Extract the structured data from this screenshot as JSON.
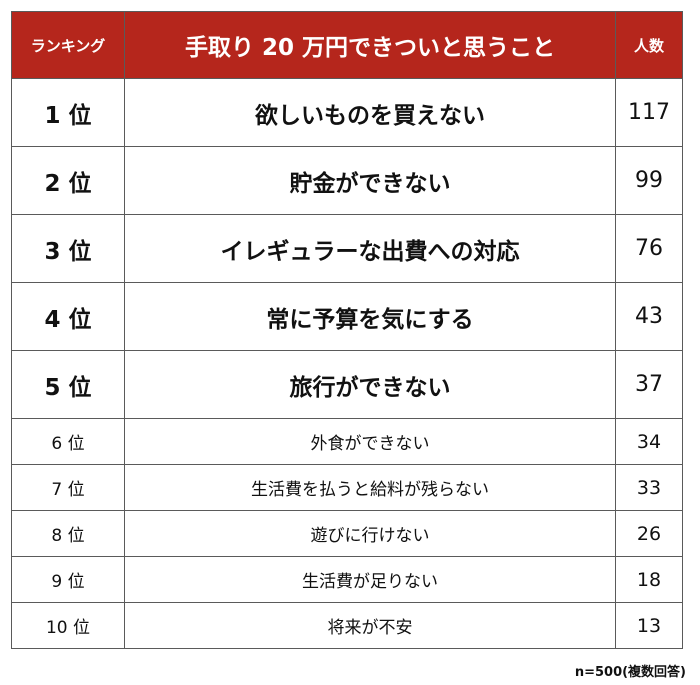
{
  "table": {
    "headers": {
      "rank": "ランキング",
      "item": "手取り 20 万円できついと思うこと",
      "count": "人数"
    },
    "footnote": "n=500(複数回答)"
  },
  "colors": {
    "header_background": "#b5261c",
    "header_text": "#ffffff",
    "border": "#5a5a5a"
  },
  "chart_data": {
    "type": "table",
    "title": "手取り 20 万円できついと思うこと",
    "columns": [
      "ランキング",
      "手取り 20 万円できついと思うこと",
      "人数"
    ],
    "rows": [
      {
        "rank": "1 位",
        "item": "欲しいものを買えない",
        "count": 117,
        "emphasis": true
      },
      {
        "rank": "2 位",
        "item": "貯金ができない",
        "count": 99,
        "emphasis": true
      },
      {
        "rank": "3 位",
        "item": "イレギュラーな出費への対応",
        "count": 76,
        "emphasis": true
      },
      {
        "rank": "4 位",
        "item": "常に予算を気にする",
        "count": 43,
        "emphasis": true
      },
      {
        "rank": "5 位",
        "item": "旅行ができない",
        "count": 37,
        "emphasis": true
      },
      {
        "rank": "6 位",
        "item": "外食ができない",
        "count": 34,
        "emphasis": false
      },
      {
        "rank": "7 位",
        "item": "生活費を払うと給料が残らない",
        "count": 33,
        "emphasis": false
      },
      {
        "rank": "8 位",
        "item": "遊びに行けない",
        "count": 26,
        "emphasis": false
      },
      {
        "rank": "9 位",
        "item": "生活費が足りない",
        "count": 18,
        "emphasis": false
      },
      {
        "rank": "10 位",
        "item": "将来が不安",
        "count": 13,
        "emphasis": false
      }
    ]
  }
}
